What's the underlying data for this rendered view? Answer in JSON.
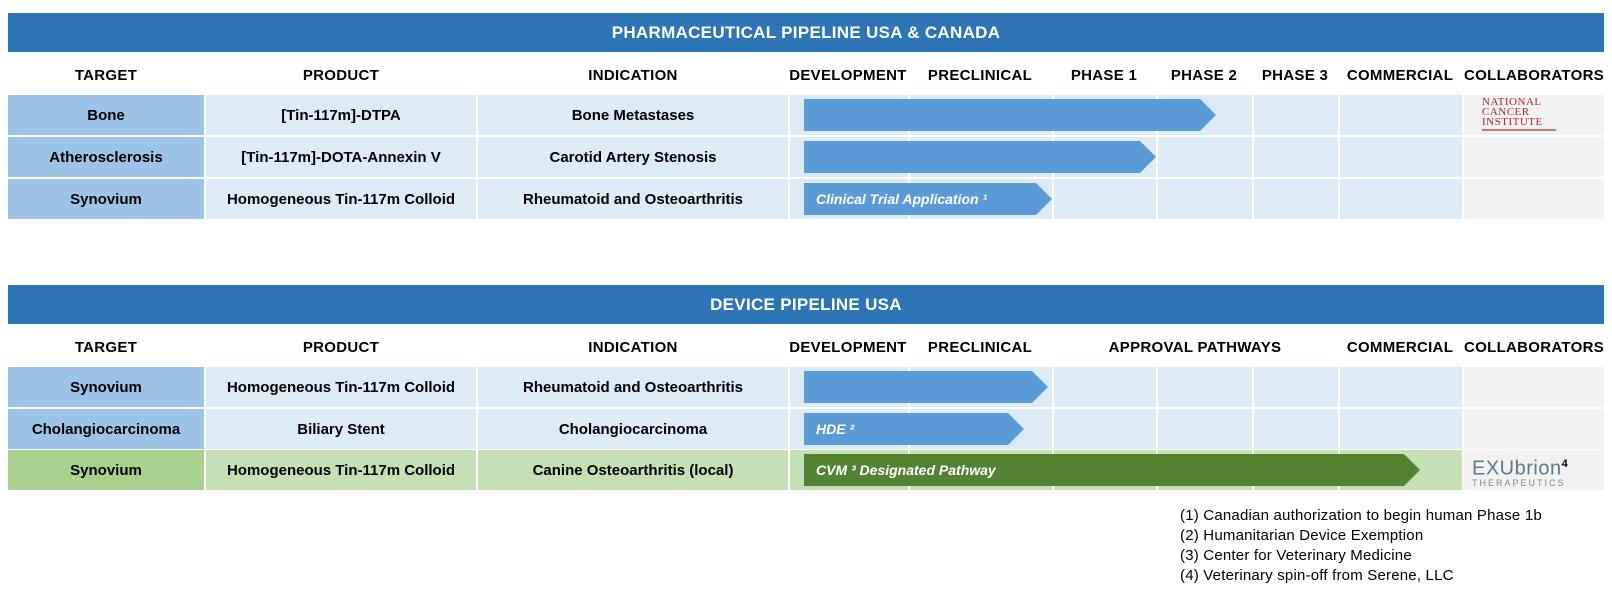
{
  "pharma": {
    "title": "PHARMACEUTICAL PIPELINE USA & CANADA",
    "headers": {
      "target": "TARGET",
      "product": "PRODUCT",
      "indication": "INDICATION",
      "development": "DEVELOPMENT",
      "preclinical": "PRECLINICAL",
      "phase1": "PHASE 1",
      "phase2": "PHASE 2",
      "phase3": "PHASE 3",
      "commercial": "COMMERCIAL",
      "collaborators": "COLLABORATORS"
    },
    "rows": [
      {
        "target": "Bone",
        "product": "[Tin-117m]-DTPA",
        "indication": "Bone Metastases",
        "bar_label": "",
        "progress_stage": "Phase 2",
        "collaborator": "National Cancer Institute"
      },
      {
        "target": "Atherosclerosis",
        "product": "[Tin-117m]-DOTA-Annexin V",
        "indication": "Carotid Artery Stenosis",
        "bar_label": "",
        "progress_stage": "Phase 1",
        "collaborator": ""
      },
      {
        "target": "Synovium",
        "product": "Homogeneous Tin-117m Colloid",
        "indication": "Rheumatoid and Osteoarthritis",
        "bar_label": "Clinical Trial Application ¹",
        "progress_stage": "Preclinical",
        "collaborator": ""
      }
    ]
  },
  "device": {
    "title": "DEVICE PIPELINE USA",
    "headers": {
      "target": "TARGET",
      "product": "PRODUCT",
      "indication": "INDICATION",
      "development": "DEVELOPMENT",
      "preclinical": "PRECLINICAL",
      "approval": "APPROVAL PATHWAYS",
      "commercial": "COMMERCIAL",
      "collaborators": "COLLABORATORS"
    },
    "rows": [
      {
        "target": "Synovium",
        "product": "Homogeneous Tin-117m Colloid",
        "indication": "Rheumatoid and Osteoarthritis",
        "bar_label": "",
        "progress_stage": "Preclinical",
        "collaborator": ""
      },
      {
        "target": "Cholangiocarcinoma",
        "product": "Biliary Stent",
        "indication": "Cholangiocarcinoma",
        "bar_label": "HDE ²",
        "progress_stage": "Preclinical",
        "collaborator": ""
      },
      {
        "target": "Synovium",
        "product": "Homogeneous Tin-117m Colloid",
        "indication": "Canine Osteoarthritis (local)",
        "bar_label": "CVM ³ Designated Pathway",
        "progress_stage": "Approval Pathways",
        "collaborator": "Exubrion Therapeutics"
      }
    ]
  },
  "logos": {
    "nci_line1": "National",
    "nci_line2": "Cancer",
    "nci_line3": "Institute",
    "exubrion_name": "EXUbrion",
    "exubrion_sup": "4",
    "exubrion_sub": "THERAPEUTICS"
  },
  "footnotes": [
    "(1) Canadian authorization to begin human Phase 1b",
    "(2) Humanitarian Device Exemption",
    "(3) Center for Veterinary Medicine",
    "(4) Veterinary spin-off from Serene, LLC"
  ],
  "colors": {
    "banner": "#2e75b6",
    "target_cell": "#9dc3e6",
    "light_cell": "#ddebf7",
    "arrow_blue": "#5b9bd5",
    "arrow_green": "#548235",
    "green_target": "#a9d18e",
    "green_light": "#c5e0b4",
    "collab_cell": "#f2f2f2"
  }
}
